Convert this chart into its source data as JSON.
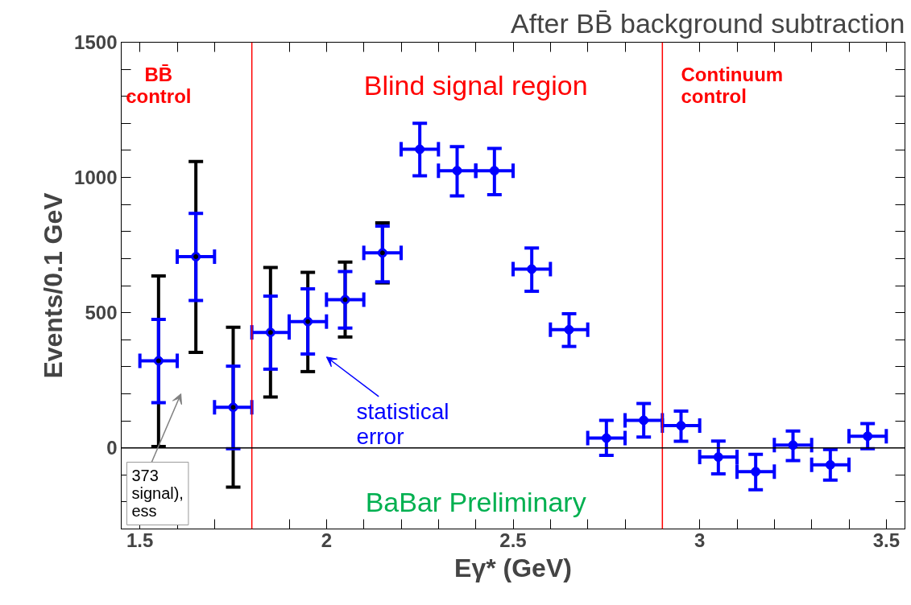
{
  "chart_data": {
    "type": "scatter",
    "title": "After BB̄ background subtraction",
    "xlabel": "Eγ* (GeV)",
    "ylabel": "Events/0.1 GeV",
    "x": [
      1.55,
      1.65,
      1.75,
      1.85,
      1.95,
      2.05,
      2.15,
      2.25,
      2.35,
      2.45,
      2.55,
      2.65,
      2.75,
      2.85,
      2.95,
      3.05,
      3.15,
      3.25,
      3.35,
      3.45
    ],
    "series": [
      {
        "color": "#000000",
        "marker": "none",
        "x": [
          1.55,
          1.65,
          1.75,
          1.85,
          1.95,
          2.05,
          2.15
        ],
        "values": [
          322,
          707,
          150,
          427,
          467,
          548,
          721
        ],
        "errors": [
          [
            5,
            636
          ],
          [
            353,
            1059
          ],
          [
            -145,
            446
          ],
          [
            188,
            667
          ],
          [
            282,
            649
          ],
          [
            410,
            687
          ],
          [
            610,
            832
          ]
        ]
      },
      {
        "color": "#0000ff",
        "marker": "circle",
        "values": [
          322,
          707,
          150,
          427,
          467,
          548,
          721,
          1104,
          1025,
          1025,
          661,
          437,
          36,
          102,
          82,
          -34,
          -88,
          10,
          -63,
          43
        ],
        "errors": [
          [
            167,
            475
          ],
          [
            545,
            867
          ],
          [
            -3,
            302
          ],
          [
            291,
            561
          ],
          [
            347,
            588
          ],
          [
            443,
            652
          ],
          [
            614,
            820
          ],
          [
            1006,
            1200
          ],
          [
            932,
            1114
          ],
          [
            936,
            1107
          ],
          [
            579,
            739
          ],
          [
            375,
            496
          ],
          [
            -28,
            102
          ],
          [
            40,
            164
          ],
          [
            24,
            136
          ],
          [
            -96,
            25
          ],
          [
            -155,
            -24
          ],
          [
            -47,
            62
          ],
          [
            -119,
            -6
          ],
          [
            -3,
            90
          ]
        ],
        "xerrors": [
          0.05,
          0.05,
          0.05,
          0.05,
          0.05,
          0.05,
          0.05,
          0.05,
          0.05,
          0.05,
          0.05,
          0.05,
          0.05,
          0.05,
          0.05,
          0.05,
          0.05,
          0.05,
          0.05,
          0.05
        ]
      }
    ],
    "xlim": [
      1.45,
      3.55
    ],
    "ylim": [
      -300,
      1500
    ],
    "xticks": [
      1.5,
      {
        "value": 1.6,
        "label": null
      },
      {
        "value": 1.7,
        "label": null
      },
      {
        "value": 1.8,
        "label": null
      },
      {
        "value": 1.9,
        "label": null
      },
      2,
      {
        "value": 2.1,
        "label": null
      },
      {
        "value": 2.2,
        "label": null
      },
      {
        "value": 2.3,
        "label": null
      },
      {
        "value": 2.4,
        "label": null
      },
      2.5,
      {
        "value": 2.6,
        "label": null
      },
      {
        "value": 2.7,
        "label": null
      },
      {
        "value": 2.8,
        "label": null
      },
      {
        "value": 2.9,
        "label": null
      },
      3,
      {
        "value": 3.1,
        "label": null
      },
      {
        "value": 3.2,
        "label": null
      },
      {
        "value": 3.3,
        "label": null
      },
      {
        "value": 3.4,
        "label": null
      },
      3.5
    ],
    "yticks": [
      {
        "value": -200,
        "label": null
      },
      {
        "value": -100,
        "label": null
      },
      0,
      {
        "value": 100,
        "label": null
      },
      {
        "value": 200,
        "label": null
      },
      {
        "value": 300,
        "label": null
      },
      {
        "value": 400,
        "label": null
      },
      500,
      {
        "value": 600,
        "label": null
      },
      {
        "value": 700,
        "label": null
      },
      {
        "value": 800,
        "label": null
      },
      {
        "value": 900,
        "label": null
      },
      1000,
      {
        "value": 1100,
        "label": null
      },
      {
        "value": 1200,
        "label": null
      },
      {
        "value": 1300,
        "label": null
      },
      {
        "value": 1400,
        "label": null
      },
      1500
    ],
    "ref_lines": [
      {
        "axis": "x",
        "value": 1.8,
        "color": "#ff0000"
      },
      {
        "axis": "x",
        "value": 2.9,
        "color": "#ff0000"
      },
      {
        "axis": "y",
        "value": 0,
        "color": "#000000"
      }
    ],
    "annotations": [
      "BB̄\ncontrol",
      "Blind signal region",
      "Continuum\ncontrol",
      "BaBar Preliminary",
      "statistical\nerror",
      "373\nsignal),\ness"
    ],
    "grid": false
  }
}
